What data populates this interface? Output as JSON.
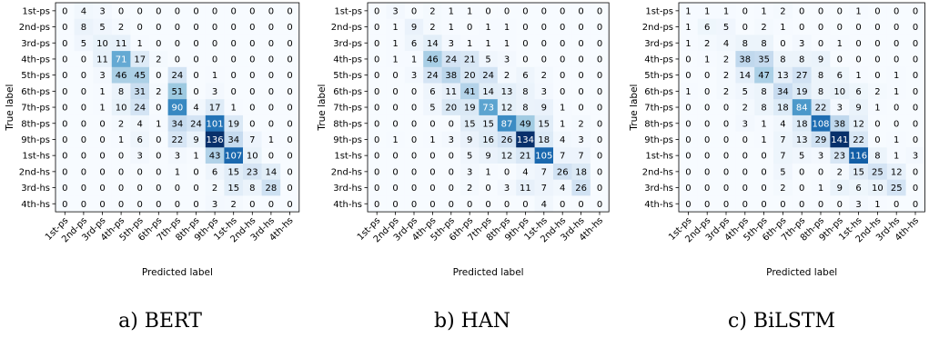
{
  "chart_data": [
    {
      "type": "heatmap",
      "caption": "a) BERT",
      "xlabel": "Predicted label",
      "ylabel": "True label",
      "labels": [
        "1st-ps",
        "2nd-ps",
        "3rd-ps",
        "4th-ps",
        "5th-ps",
        "6th-ps",
        "7th-ps",
        "8th-ps",
        "9th-ps",
        "1st-hs",
        "2nd-hs",
        "3rd-hs",
        "4th-hs"
      ],
      "vmax": 136,
      "matrix": [
        [
          0,
          4,
          3,
          0,
          0,
          0,
          0,
          0,
          0,
          0,
          0,
          0,
          0
        ],
        [
          0,
          8,
          5,
          2,
          0,
          0,
          0,
          0,
          0,
          0,
          0,
          0,
          0
        ],
        [
          0,
          5,
          10,
          11,
          1,
          0,
          0,
          0,
          0,
          0,
          0,
          0,
          0
        ],
        [
          0,
          0,
          11,
          71,
          17,
          2,
          0,
          0,
          0,
          0,
          0,
          0,
          0
        ],
        [
          0,
          0,
          3,
          46,
          45,
          0,
          24,
          0,
          1,
          0,
          0,
          0,
          0
        ],
        [
          0,
          0,
          1,
          8,
          31,
          2,
          51,
          0,
          3,
          0,
          0,
          0,
          0
        ],
        [
          0,
          0,
          1,
          10,
          24,
          0,
          90,
          4,
          17,
          1,
          0,
          0,
          0
        ],
        [
          0,
          0,
          0,
          2,
          4,
          1,
          34,
          24,
          101,
          19,
          0,
          0,
          0
        ],
        [
          0,
          0,
          0,
          1,
          6,
          0,
          22,
          9,
          136,
          34,
          7,
          1,
          0
        ],
        [
          0,
          0,
          0,
          0,
          3,
          0,
          3,
          1,
          43,
          107,
          10,
          0,
          0
        ],
        [
          0,
          0,
          0,
          0,
          0,
          0,
          1,
          0,
          6,
          15,
          23,
          14,
          0
        ],
        [
          0,
          0,
          0,
          0,
          0,
          0,
          0,
          0,
          2,
          15,
          8,
          28,
          0
        ],
        [
          0,
          0,
          0,
          0,
          0,
          0,
          0,
          0,
          3,
          2,
          0,
          0,
          0
        ]
      ]
    },
    {
      "type": "heatmap",
      "caption": "b) HAN",
      "xlabel": "Predicted label",
      "ylabel": "True label",
      "labels": [
        "1st-ps",
        "2nd-ps",
        "3rd-ps",
        "4th-ps",
        "5th-ps",
        "6th-ps",
        "7th-ps",
        "8th-ps",
        "9th-ps",
        "1st-hs",
        "2nd-hs",
        "3rd-hs",
        "4th-hs"
      ],
      "vmax": 134,
      "matrix": [
        [
          0,
          3,
          0,
          2,
          1,
          1,
          0,
          0,
          0,
          0,
          0,
          0,
          0
        ],
        [
          0,
          1,
          9,
          2,
          1,
          0,
          1,
          1,
          0,
          0,
          0,
          0,
          0
        ],
        [
          0,
          1,
          6,
          14,
          3,
          1,
          1,
          1,
          0,
          0,
          0,
          0,
          0
        ],
        [
          0,
          1,
          1,
          46,
          24,
          21,
          5,
          3,
          0,
          0,
          0,
          0,
          0
        ],
        [
          0,
          0,
          3,
          24,
          38,
          20,
          24,
          2,
          6,
          2,
          0,
          0,
          0
        ],
        [
          0,
          0,
          0,
          6,
          11,
          41,
          14,
          13,
          8,
          3,
          0,
          0,
          0
        ],
        [
          0,
          0,
          0,
          5,
          20,
          19,
          73,
          12,
          8,
          9,
          1,
          0,
          0
        ],
        [
          0,
          0,
          0,
          0,
          0,
          15,
          15,
          87,
          49,
          15,
          1,
          2,
          0
        ],
        [
          0,
          1,
          0,
          1,
          3,
          9,
          16,
          26,
          134,
          18,
          4,
          3,
          0
        ],
        [
          0,
          0,
          0,
          0,
          0,
          5,
          9,
          12,
          21,
          105,
          7,
          7,
          0
        ],
        [
          0,
          0,
          0,
          0,
          0,
          3,
          1,
          0,
          4,
          7,
          26,
          18,
          0
        ],
        [
          0,
          0,
          0,
          0,
          0,
          2,
          0,
          3,
          11,
          7,
          4,
          26,
          0
        ],
        [
          0,
          0,
          0,
          0,
          0,
          0,
          0,
          0,
          0,
          4,
          0,
          0,
          0
        ]
      ]
    },
    {
      "type": "heatmap",
      "caption": "c) BiLSTM",
      "xlabel": "Predicted label",
      "ylabel": "True label",
      "labels": [
        "1st-ps",
        "2nd-ps",
        "3rd-ps",
        "4th-ps",
        "5th-ps",
        "6th-ps",
        "7th-ps",
        "8th-ps",
        "9th-ps",
        "1st-hs",
        "2nd-hs",
        "3rd-hs",
        "4th-hs"
      ],
      "vmax": 141,
      "matrix": [
        [
          1,
          1,
          1,
          0,
          1,
          2,
          0,
          0,
          0,
          1,
          0,
          0,
          0
        ],
        [
          1,
          6,
          5,
          0,
          2,
          1,
          0,
          0,
          0,
          0,
          0,
          0,
          0
        ],
        [
          1,
          2,
          4,
          8,
          8,
          0,
          3,
          0,
          1,
          0,
          0,
          0,
          0
        ],
        [
          0,
          1,
          2,
          38,
          35,
          8,
          8,
          9,
          0,
          0,
          0,
          0,
          0
        ],
        [
          0,
          0,
          2,
          14,
          47,
          13,
          27,
          8,
          6,
          1,
          0,
          1,
          0
        ],
        [
          1,
          0,
          2,
          5,
          8,
          34,
          19,
          8,
          10,
          6,
          2,
          1,
          0
        ],
        [
          0,
          0,
          0,
          2,
          8,
          18,
          84,
          22,
          3,
          9,
          1,
          0,
          0
        ],
        [
          0,
          0,
          0,
          3,
          1,
          4,
          18,
          108,
          38,
          12,
          0,
          0,
          0
        ],
        [
          0,
          0,
          0,
          0,
          1,
          7,
          13,
          29,
          141,
          22,
          0,
          1,
          0
        ],
        [
          0,
          0,
          0,
          0,
          0,
          7,
          5,
          3,
          23,
          116,
          8,
          1,
          3
        ],
        [
          0,
          0,
          0,
          0,
          0,
          5,
          0,
          0,
          2,
          15,
          25,
          12,
          0
        ],
        [
          0,
          0,
          0,
          0,
          0,
          2,
          0,
          1,
          9,
          6,
          10,
          25,
          0
        ],
        [
          0,
          0,
          0,
          0,
          0,
          0,
          0,
          0,
          0,
          3,
          1,
          0,
          0
        ]
      ]
    }
  ]
}
